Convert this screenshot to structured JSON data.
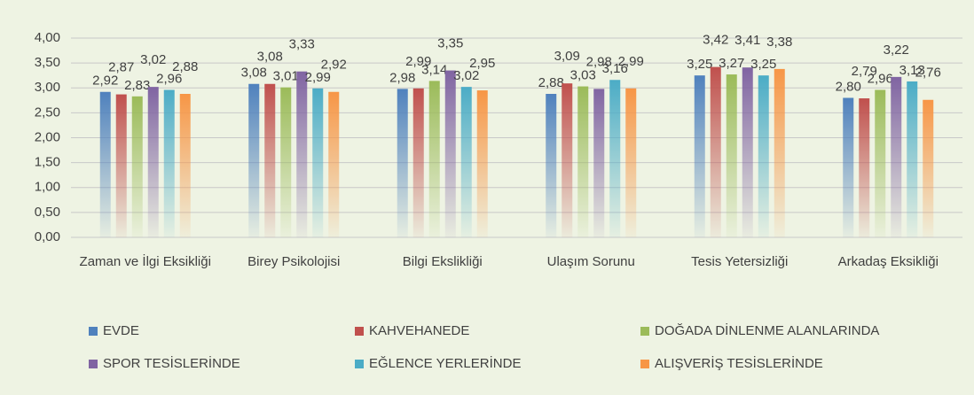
{
  "chart_data": {
    "type": "bar",
    "categories": [
      "Zaman ve İlgi Eksikliği",
      "Birey Psikolojisi",
      "Bilgi Ekslikliği",
      "Ulaşım Sorunu",
      "Tesis Yetersizliği",
      "Arkadaş Eksikliği"
    ],
    "series": [
      {
        "name": "EVDE",
        "color": "#4f81bd",
        "values": [
          2.92,
          3.08,
          2.98,
          2.88,
          3.25,
          2.8
        ],
        "value_labels": [
          "2,92",
          "3,08",
          "2,98",
          "2,88",
          "3,25",
          "2,80"
        ]
      },
      {
        "name": "KAHVEHANEDE",
        "color": "#c0504d",
        "values": [
          2.87,
          3.08,
          2.99,
          3.09,
          3.42,
          2.79
        ],
        "value_labels": [
          "2,87",
          "3,08",
          "2,99",
          "3,09",
          "3,42",
          "2,79"
        ]
      },
      {
        "name": "DOĞADA DİNLENME ALANLARINDA",
        "color": "#9bbb59",
        "values": [
          2.83,
          3.01,
          3.14,
          3.03,
          3.27,
          2.96
        ],
        "value_labels": [
          "2,83",
          "3,01",
          "3,14",
          "3,03",
          "3,27",
          "2,96"
        ]
      },
      {
        "name": "SPOR TESİSLERİNDE",
        "color": "#8064a2",
        "values": [
          3.02,
          3.33,
          3.35,
          2.98,
          3.41,
          3.22
        ],
        "value_labels": [
          "3,02",
          "3,33",
          "3,35",
          "2,98",
          "3,41",
          "3,22"
        ]
      },
      {
        "name": "EĞLENCE YERLERİNDE",
        "color": "#4bacc6",
        "values": [
          2.96,
          2.99,
          3.02,
          3.16,
          3.25,
          3.13
        ],
        "value_labels": [
          "2,96",
          "2,99",
          "3,02",
          "3,16",
          "3,25",
          "3,13"
        ]
      },
      {
        "name": "ALIŞVERİŞ TESİSLERİNDE",
        "color": "#f79646",
        "values": [
          2.88,
          2.92,
          2.95,
          2.99,
          3.38,
          2.76
        ],
        "value_labels": [
          "2,88",
          "2,92",
          "2,95",
          "2,99",
          "3,38",
          "2,76"
        ]
      }
    ],
    "ylim": [
      0,
      4
    ],
    "yticks": [
      {
        "value": 0,
        "label": "0,00"
      },
      {
        "value": 0.5,
        "label": "0,50"
      },
      {
        "value": 1,
        "label": "1,00"
      },
      {
        "value": 1.5,
        "label": "1,50"
      },
      {
        "value": 2,
        "label": "2,00"
      },
      {
        "value": 2.5,
        "label": "2,50"
      },
      {
        "value": 3,
        "label": "3,00"
      },
      {
        "value": 3.5,
        "label": "3,50"
      },
      {
        "value": 4,
        "label": "4,00"
      }
    ],
    "grid": true
  }
}
